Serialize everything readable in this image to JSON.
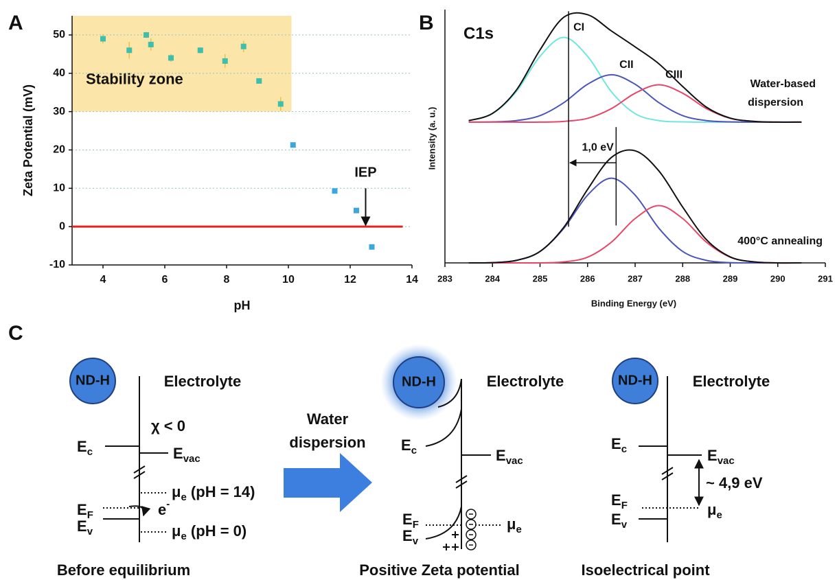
{
  "chart_data": [
    {
      "panel": "A",
      "type": "scatter",
      "x": [
        4.0,
        4.85,
        5.4,
        5.55,
        6.2,
        7.15,
        7.95,
        8.55,
        9.05,
        9.75,
        10.15,
        11.5,
        12.2,
        12.7
      ],
      "values": [
        49,
        46,
        50,
        47.5,
        44,
        46,
        43.2,
        47,
        38,
        32,
        21.3,
        9.3,
        4.2,
        -5.3
      ],
      "errors": [
        1.2,
        2.2,
        0.8,
        1.6,
        1,
        0.8,
        1.8,
        1.5,
        0.6,
        1.8,
        null,
        null,
        null,
        null
      ],
      "colors": [
        "#3dbfae",
        "#3dbfae",
        "#3dbfae",
        "#3dbfae",
        "#3dbfae",
        "#3dbfae",
        "#3dbfae",
        "#3dbfae",
        "#3dbfae",
        "#3dbfae",
        "#3aa8dc",
        "#3aa8dc",
        "#3aa8dc",
        "#3aa8dc"
      ],
      "xlabel": "pH",
      "ylabel": "Zeta Potential (mV)",
      "xlim": [
        3,
        14
      ],
      "xticks": [
        4,
        6,
        8,
        10,
        12,
        14
      ],
      "ylim": [
        -10,
        55
      ],
      "yticks": [
        -10,
        0,
        10,
        20,
        30,
        40,
        50
      ],
      "grid": true,
      "region": {
        "label": "Stability zone",
        "xlim": [
          3,
          10.1
        ],
        "ylim": [
          30,
          55
        ],
        "color": "#fbe5a8"
      },
      "hline": {
        "y": 0,
        "xlim": [
          3,
          13.7
        ],
        "color": "#e8231f"
      },
      "arrow": {
        "label": "IEP",
        "x": 12.5,
        "ylim": [
          10,
          0
        ]
      }
    },
    {
      "panel": "B",
      "type": "line",
      "title": "C1s",
      "xlabel": "Binding Energy (eV)",
      "ylabel": "Intensity (a. u.)",
      "xlim": [
        283,
        291
      ],
      "xticks": [
        283,
        284,
        285,
        286,
        287,
        288,
        289,
        290,
        291
      ],
      "ylim": [
        0,
        100
      ],
      "x": [
        283.5,
        284,
        284.5,
        285,
        285.5,
        286,
        286.5,
        287,
        287.5,
        288,
        288.5,
        289,
        289.5,
        290,
        290.5
      ],
      "series": [
        {
          "name": "CI",
          "color": "#6fe6de",
          "values": [
            57.1,
            59.9,
            68.7,
            82.9,
            90.5,
            82.9,
            68.7,
            59.9,
            57.1,
            56.6,
            56.5,
            56.5,
            56.5,
            56.5,
            56.5
          ]
        },
        {
          "name": "CII",
          "color": "#4a56b8",
          "values": [
            56.5,
            56.6,
            57.1,
            59.1,
            64.3,
            71.7,
            75.5,
            71.7,
            64.3,
            59.1,
            57.1,
            56.6,
            56.5,
            56.5,
            56.5
          ]
        },
        {
          "name": "CIII",
          "color": "#e8456a",
          "values": [
            56.5,
            56.5,
            56.5,
            56.5,
            56.8,
            58.0,
            61.9,
            68.1,
            71.5,
            68.1,
            61.9,
            58.0,
            56.8,
            56.5,
            56.5
          ]
        },
        {
          "color": "#111111",
          "values": [
            57.1,
            60.0,
            69.3,
            85.5,
            98.6,
            99.6,
            93.1,
            86.7,
            79.9,
            70.8,
            62.5,
            58.1,
            56.8,
            56.5,
            56.5
          ]
        },
        {
          "color": "#4a56b8",
          "values": [
            0,
            0.1,
            1.0,
            4.6,
            13.9,
            27.2,
            34,
            27.2,
            13.9,
            4.6,
            1.0,
            0.1,
            0,
            0,
            0
          ]
        },
        {
          "color": "#e8456a",
          "values": [
            0,
            0,
            0,
            0,
            0.4,
            2.3,
            8.3,
            17.8,
            23,
            17.8,
            8.3,
            2.3,
            0.4,
            0,
            0
          ]
        },
        {
          "color": "#111111",
          "values": [
            0,
            0.1,
            1.0,
            4.6,
            14.3,
            29.5,
            42.3,
            45.0,
            36.9,
            22.4,
            9.3,
            2.4,
            0.4,
            0,
            0
          ]
        }
      ],
      "annotations": [
        "Water-based",
        "dispersion",
        "400°C annealing"
      ],
      "markers": [
        {
          "x": 285.6,
          "ylim": [
            14.5,
            101
          ]
        },
        {
          "x": 286.6,
          "ylim": [
            15,
            54.5
          ]
        }
      ],
      "shift": {
        "label": "1,0 eV",
        "x": [
          286.6,
          285.6
        ],
        "y": 40.2
      }
    }
  ],
  "diagram": {
    "label": "C",
    "arrow": {
      "lines": [
        "Water",
        "dispersion"
      ]
    },
    "panels": [
      {
        "particle": "ND-H",
        "medium": "Electrolyte",
        "caption": "Before equilibrium",
        "affinity": "χ < 0",
        "levels": {
          "ec": {
            "base": "E",
            "sub": "c"
          },
          "evac": {
            "base": "E",
            "sub": "vac"
          },
          "ef": {
            "base": "E",
            "sub": "F"
          },
          "ev": {
            "base": "E",
            "sub": "v"
          },
          "electron": {
            "base": "e",
            "sup": "-"
          },
          "mu_high": {
            "base": "μ",
            "sub": "e",
            "tail": " (pH = 14)"
          },
          "mu_low": {
            "base": "μ",
            "sub": "e",
            "tail": " (pH = 0)"
          }
        }
      },
      {
        "particle": "ND-H",
        "medium": "Electrolyte",
        "caption": "Positive Zeta potential",
        "levels": {
          "ec": {
            "base": "E",
            "sub": "c"
          },
          "evac": {
            "base": "E",
            "sub": "vac"
          },
          "ef": {
            "base": "E",
            "sub": "F"
          },
          "ev": {
            "base": "E",
            "sub": "v"
          },
          "mu": {
            "base": "μ",
            "sub": "e"
          }
        }
      },
      {
        "particle": "ND-H",
        "medium": "Electrolyte",
        "caption": "Isoelectrical point",
        "gap": "~ 4,9 eV",
        "levels": {
          "ec": {
            "base": "E",
            "sub": "c"
          },
          "evac": {
            "base": "E",
            "sub": "vac"
          },
          "ef": {
            "base": "E",
            "sub": "F"
          },
          "ev": {
            "base": "E",
            "sub": "v"
          },
          "mu": {
            "base": "μ",
            "sub": "e"
          }
        }
      }
    ]
  }
}
